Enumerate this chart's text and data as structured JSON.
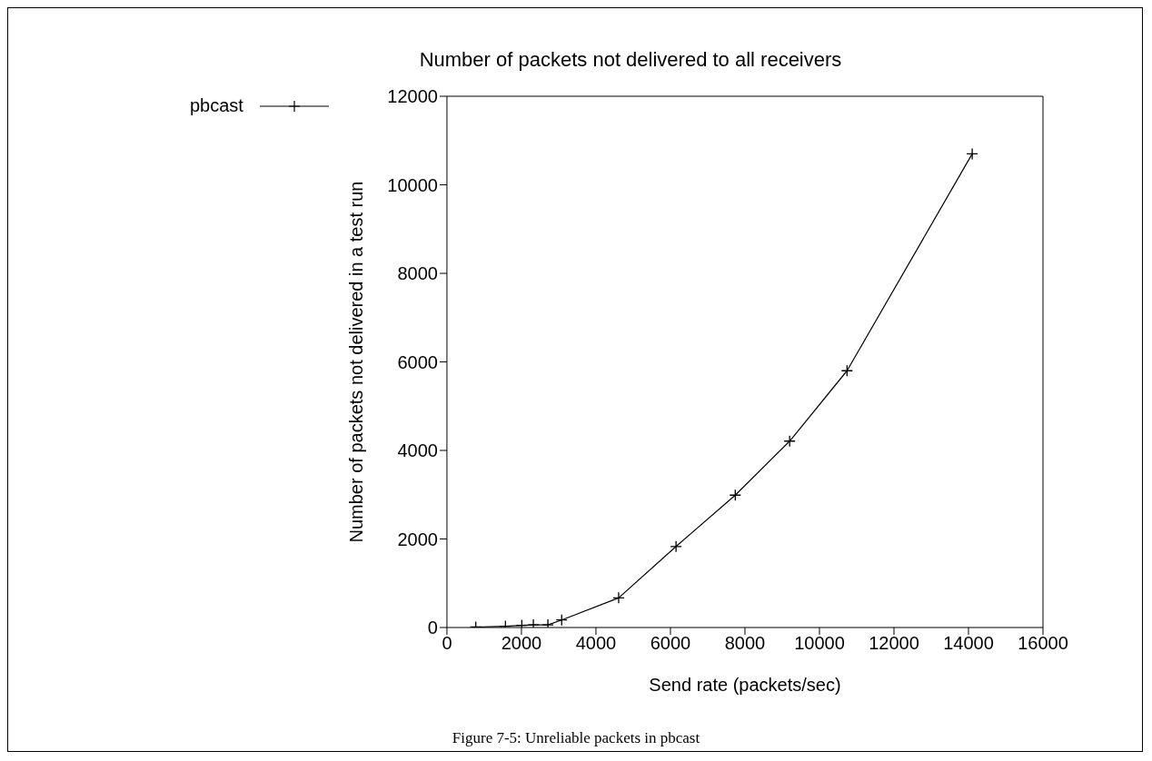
{
  "chart_data": {
    "type": "line",
    "title": "Number of packets not delivered to all receivers",
    "xlabel": "Send rate (packets/sec)",
    "ylabel": "Number of packets not delivered in a test run",
    "x": [
      775,
      1570,
      2010,
      2320,
      2710,
      3080,
      4610,
      6150,
      7740,
      9200,
      10740,
      14100
    ],
    "series": [
      {
        "name": "pbcast",
        "color": "#000000",
        "values": [
          10,
          30,
          50,
          60,
          60,
          170,
          670,
          1830,
          2990,
          4210,
          5800,
          10700
        ]
      }
    ],
    "xlim": [
      0,
      16000
    ],
    "xticks": [
      0,
      2000,
      4000,
      6000,
      8000,
      10000,
      12000,
      14000,
      16000
    ],
    "ylim": [
      0,
      12000
    ],
    "yticks": [
      0,
      2000,
      4000,
      6000,
      8000,
      10000,
      12000
    ],
    "grid": false,
    "legend": "top left",
    "marker": "cross",
    "line_style": "solid",
    "annotations": [
      "Figure 7-5: Unreliable packets in pbcast"
    ]
  }
}
